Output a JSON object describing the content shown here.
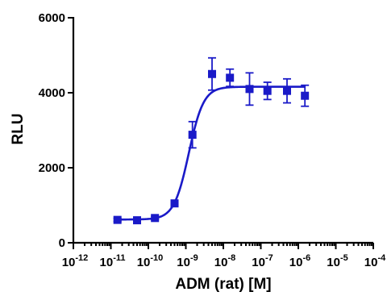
{
  "chart_data": {
    "type": "scatter",
    "title": "",
    "xlabel": "ADM (rat) [M]",
    "ylabel": "RLU",
    "x_scale": "log",
    "xlim": [
      1e-12,
      0.0001
    ],
    "ylim": [
      0,
      6000
    ],
    "y_ticks": [
      0,
      2000,
      4000,
      6000
    ],
    "y_tick_labels": [
      "0",
      "2000",
      "4000",
      "6000"
    ],
    "x_tick_exponents": [
      -12,
      -11,
      -10,
      -9,
      -8,
      -7,
      -6,
      -5,
      -4
    ],
    "x_tick_base": "10",
    "grid": false,
    "legend": "none",
    "marker": "square",
    "color": "#1a1ac8",
    "points": [
      {
        "x": 1.5e-11,
        "y": 610,
        "err": 40
      },
      {
        "x": 5e-11,
        "y": 600,
        "err": 40
      },
      {
        "x": 1.5e-10,
        "y": 660,
        "err": 40
      },
      {
        "x": 5e-10,
        "y": 1050,
        "err": 60
      },
      {
        "x": 1.5e-09,
        "y": 2880,
        "err": 350
      },
      {
        "x": 5e-09,
        "y": 4500,
        "err": 430
      },
      {
        "x": 1.5e-08,
        "y": 4400,
        "err": 230
      },
      {
        "x": 5e-08,
        "y": 4100,
        "err": 430
      },
      {
        "x": 1.5e-07,
        "y": 4050,
        "err": 230
      },
      {
        "x": 5e-07,
        "y": 4050,
        "err": 320
      },
      {
        "x": 1.5e-06,
        "y": 3920,
        "err": 280
      }
    ],
    "fit": {
      "model": "sigmoidal dose-response",
      "bottom": 620,
      "top": 4160,
      "ec50": 1.2e-09,
      "hill": 2.2,
      "x_range": [
        1.5e-11,
        1.5e-06
      ]
    }
  }
}
